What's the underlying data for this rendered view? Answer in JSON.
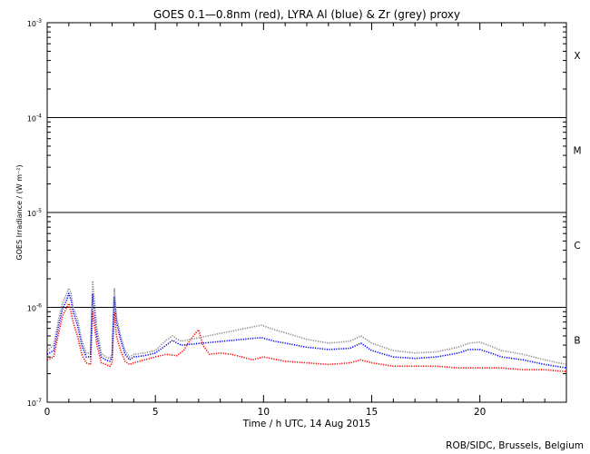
{
  "chart_data": {
    "type": "line",
    "title": "GOES 0.1—0.8nm (red), LYRA Al (blue) & Zr (grey) proxy",
    "xlabel": "Time / h UTC, 14 Aug 2015",
    "ylabel": "GOES Irradiance / (W m⁻²)",
    "credit": "ROB/SIDC, Brussels, Belgium",
    "xlim": [
      0,
      24
    ],
    "ylim": [
      1e-07,
      0.001
    ],
    "y_scale": "log",
    "x_ticks": [
      0,
      5,
      10,
      15,
      20
    ],
    "y_ticks": [
      {
        "base": "10",
        "exp": "-7",
        "value": 1e-07
      },
      {
        "base": "10",
        "exp": "-6",
        "value": 1e-06
      },
      {
        "base": "10",
        "exp": "-5",
        "value": 1e-05
      },
      {
        "base": "10",
        "exp": "-4",
        "value": 0.0001
      },
      {
        "base": "10",
        "exp": "-3",
        "value": 0.001
      }
    ],
    "class_lines": [
      1e-06,
      1e-05,
      0.0001
    ],
    "flare_classes": [
      {
        "label": "B",
        "value": 4.5e-07
      },
      {
        "label": "C",
        "value": 4.5e-06
      },
      {
        "label": "M",
        "value": 4.5e-05
      },
      {
        "label": "X",
        "value": 0.00045
      }
    ],
    "series": [
      {
        "color": "#ff0000",
        "x": [
          0.0,
          0.3,
          0.5,
          0.7,
          0.9,
          1.0,
          1.1,
          1.2,
          1.4,
          1.6,
          1.8,
          2.0,
          2.1,
          2.3,
          2.5,
          2.7,
          2.9,
          3.0,
          3.1,
          3.2,
          3.4,
          3.6,
          3.8,
          4.0,
          4.5,
          5.0,
          5.5,
          6.0,
          6.3,
          6.6,
          6.9,
          7.0,
          7.2,
          7.5,
          8.0,
          8.5,
          9.0,
          9.5,
          10.0,
          11.0,
          12.0,
          13.0,
          14.0,
          14.5,
          15.0,
          16.0,
          17.0,
          18.0,
          19.0,
          20.0,
          21.0,
          22.0,
          23.0,
          24.0
        ],
        "y": [
          2.8e-07,
          3e-07,
          5e-07,
          8e-07,
          1e-06,
          1.1e-06,
          9e-07,
          7e-07,
          5e-07,
          3.2e-07,
          2.6e-07,
          2.5e-07,
          9e-07,
          4e-07,
          2.6e-07,
          2.5e-07,
          2.4e-07,
          2.6e-07,
          9e-07,
          5e-07,
          3.5e-07,
          2.7e-07,
          2.5e-07,
          2.6e-07,
          2.8e-07,
          3e-07,
          3.2e-07,
          3.1e-07,
          3.5e-07,
          4.5e-07,
          5.5e-07,
          5.8e-07,
          4e-07,
          3.2e-07,
          3.3e-07,
          3.2e-07,
          3e-07,
          2.8e-07,
          3e-07,
          2.7e-07,
          2.6e-07,
          2.5e-07,
          2.6e-07,
          2.8e-07,
          2.6e-07,
          2.4e-07,
          2.4e-07,
          2.4e-07,
          2.3e-07,
          2.3e-07,
          2.3e-07,
          2.2e-07,
          2.2e-07,
          2.1e-07
        ]
      },
      {
        "color": "#0000ff",
        "x": [
          0.0,
          0.3,
          0.5,
          0.7,
          0.9,
          1.0,
          1.1,
          1.2,
          1.4,
          1.6,
          1.8,
          2.0,
          2.1,
          2.3,
          2.5,
          2.7,
          2.9,
          3.0,
          3.1,
          3.2,
          3.4,
          3.6,
          3.8,
          4.0,
          4.5,
          5.0,
          5.5,
          5.8,
          6.0,
          6.2,
          9.9,
          10.5,
          11.0,
          12.0,
          13.0,
          14.0,
          14.5,
          15.0,
          16.0,
          17.0,
          18.0,
          19.0,
          19.5,
          20.0,
          20.5,
          21.0,
          22.0,
          23.0,
          24.0
        ],
        "y": [
          3.2e-07,
          3.5e-07,
          6e-07,
          9.5e-07,
          1.2e-06,
          1.4e-06,
          1.2e-06,
          9e-07,
          6.5e-07,
          4e-07,
          3e-07,
          3e-07,
          1.4e-06,
          5e-07,
          3e-07,
          2.8e-07,
          2.7e-07,
          3e-07,
          1.3e-06,
          7e-07,
          4.5e-07,
          3.2e-07,
          2.8e-07,
          3e-07,
          3.1e-07,
          3.3e-07,
          4e-07,
          4.5e-07,
          4.2e-07,
          4e-07,
          4.8e-07,
          4.4e-07,
          4.2e-07,
          3.8e-07,
          3.6e-07,
          3.7e-07,
          4.2e-07,
          3.5e-07,
          3e-07,
          2.9e-07,
          3e-07,
          3.3e-07,
          3.6e-07,
          3.6e-07,
          3.3e-07,
          3e-07,
          2.8e-07,
          2.5e-07,
          2.3e-07
        ]
      },
      {
        "color": "#888888",
        "x": [
          0.0,
          0.3,
          0.5,
          0.7,
          0.9,
          1.0,
          1.1,
          1.2,
          1.4,
          1.6,
          1.8,
          2.0,
          2.1,
          2.3,
          2.5,
          2.7,
          2.9,
          3.0,
          3.1,
          3.2,
          3.4,
          3.6,
          3.8,
          4.0,
          4.5,
          5.0,
          5.5,
          5.8,
          6.0,
          6.2,
          9.9,
          10.5,
          11.0,
          12.0,
          13.0,
          14.0,
          14.5,
          15.0,
          16.0,
          17.0,
          18.0,
          19.0,
          19.5,
          20.0,
          20.5,
          21.0,
          22.0,
          23.0,
          24.0
        ],
        "y": [
          3.5e-07,
          4e-07,
          7e-07,
          1.1e-06,
          1.4e-06,
          1.6e-06,
          1.4e-06,
          1e-06,
          7.5e-07,
          4.5e-07,
          3.3e-07,
          3.3e-07,
          1.9e-06,
          6e-07,
          3.3e-07,
          3e-07,
          2.9e-07,
          3.2e-07,
          1.6e-06,
          8e-07,
          5e-07,
          3.5e-07,
          3e-07,
          3.2e-07,
          3.3e-07,
          3.5e-07,
          4.5e-07,
          5e-07,
          4.6e-07,
          4.4e-07,
          6.5e-07,
          5.8e-07,
          5.4e-07,
          4.6e-07,
          4.2e-07,
          4.4e-07,
          5e-07,
          4.2e-07,
          3.5e-07,
          3.3e-07,
          3.4e-07,
          3.8e-07,
          4.2e-07,
          4.3e-07,
          3.9e-07,
          3.5e-07,
          3.2e-07,
          2.8e-07,
          2.5e-07
        ]
      }
    ]
  }
}
